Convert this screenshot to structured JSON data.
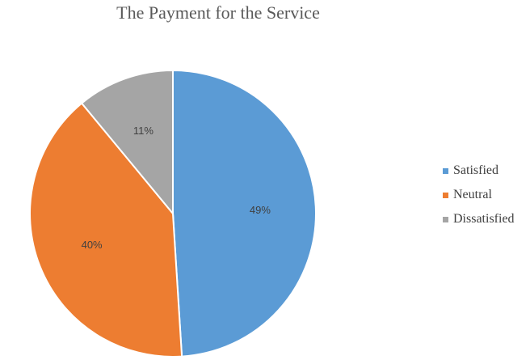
{
  "chart_data": {
    "type": "pie",
    "title": "The Payment for the Service",
    "categories": [
      "Satisfied",
      "Neutral",
      "Dissatisfied"
    ],
    "values": [
      49,
      40,
      11
    ],
    "value_suffix": "%",
    "colors": [
      "#5B9BD5",
      "#ED7D31",
      "#A5A5A5"
    ],
    "start_angle_deg": 0,
    "direction": "clockwise",
    "legend": "right",
    "data_labels": [
      "49%",
      "40%",
      "11%"
    ]
  }
}
